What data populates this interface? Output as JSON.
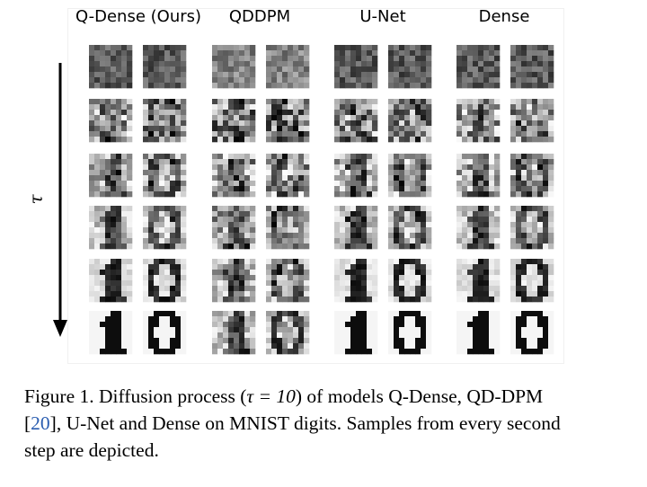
{
  "figure": {
    "columns": [
      "Q-Dense (Ours)",
      "QDDPM",
      "U-Net",
      "Dense"
    ],
    "axis_label": "τ",
    "rows": 6
  },
  "caption": {
    "part1": "Figure 1. Diffusion process (",
    "tau_expr": "τ = 10",
    "part2": ") of models Q-Dense, QD-DPM [",
    "ref": "20",
    "part3": "], U-Net and Dense on MNIST digits. Samples from every second step are depicted."
  }
}
